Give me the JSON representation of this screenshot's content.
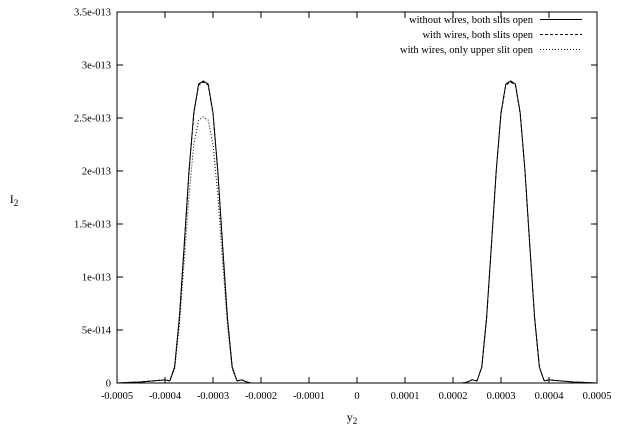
{
  "chart_data": {
    "type": "line",
    "title": "",
    "xlabel": "y",
    "xlabel_sub": "2",
    "ylabel": "I",
    "ylabel_sub": "2",
    "xlim": [
      -0.0005,
      0.0005
    ],
    "ylim": [
      0,
      3.5e-13
    ],
    "x_ticks": [
      -0.0005,
      -0.0004,
      -0.0003,
      -0.0002,
      -0.0001,
      0,
      0.0001,
      0.0002,
      0.0003,
      0.0004,
      0.0005
    ],
    "x_tick_labels": [
      "-0.0005",
      "-0.0004",
      "-0.0003",
      "-0.0002",
      "-0.0001",
      "0",
      "0.0001",
      "0.0002",
      "0.0003",
      "0.0004",
      "0.0005"
    ],
    "y_ticks": [
      0,
      5e-14,
      1e-13,
      1.5e-13,
      2e-13,
      2.5e-13,
      3e-13,
      3.5e-13
    ],
    "y_tick_labels": [
      "0",
      "5e-014",
      "1e-013",
      "1.5e-013",
      "2e-013",
      "2.5e-013",
      "3e-013",
      "3.5e-013"
    ],
    "grid": false,
    "legend_position": "top-right",
    "series": [
      {
        "name": "without wires, both slits open",
        "style": "solid",
        "x": [
          -0.0005,
          -0.00045,
          -0.0004,
          -0.00039,
          -0.00038,
          -0.00037,
          -0.00036,
          -0.00035,
          -0.00034,
          -0.00033,
          -0.00032,
          -0.00031,
          -0.0003,
          -0.00029,
          -0.00028,
          -0.00027,
          -0.00026,
          -0.00025,
          -0.00024,
          -0.00023,
          -0.00022,
          -0.0002,
          -0.0001,
          0,
          0.0001,
          0.0002,
          0.00022,
          0.00023,
          0.00024,
          0.00025,
          0.00026,
          0.00027,
          0.00028,
          0.00029,
          0.0003,
          0.00031,
          0.00032,
          0.00033,
          0.00034,
          0.00035,
          0.00036,
          0.00037,
          0.00038,
          0.00039,
          0.0004,
          0.00045,
          0.0005
        ],
        "y": [
          0,
          1e-15,
          3e-15,
          2e-15,
          1.5e-14,
          6.2e-14,
          1.3e-13,
          2e-13,
          2.55e-13,
          2.82e-13,
          2.85e-13,
          2.82e-13,
          2.55e-13,
          2e-13,
          1.3e-13,
          6.2e-14,
          1.5e-14,
          2e-15,
          3e-15,
          1e-15,
          0,
          0,
          0,
          0,
          0,
          0,
          0,
          1e-15,
          3e-15,
          2e-15,
          1.5e-14,
          6.2e-14,
          1.3e-13,
          2e-13,
          2.55e-13,
          2.82e-13,
          2.85e-13,
          2.82e-13,
          2.55e-13,
          2e-13,
          1.3e-13,
          6.2e-14,
          1.5e-14,
          2e-15,
          3e-15,
          1e-15,
          0
        ]
      },
      {
        "name": "with wires, both slits open",
        "style": "dashed",
        "x": [
          -0.0005,
          -0.00045,
          -0.0004,
          -0.00039,
          -0.00038,
          -0.00037,
          -0.00036,
          -0.00035,
          -0.00034,
          -0.00033,
          -0.00032,
          -0.00031,
          -0.0003,
          -0.00029,
          -0.00028,
          -0.00027,
          -0.00026,
          -0.00025,
          -0.00024,
          -0.00023,
          -0.00022,
          -0.0002,
          -0.0001,
          0,
          0.0001,
          0.0002,
          0.00022,
          0.00023,
          0.00024,
          0.00025,
          0.00026,
          0.00027,
          0.00028,
          0.00029,
          0.0003,
          0.00031,
          0.00032,
          0.00033,
          0.00034,
          0.00035,
          0.00036,
          0.00037,
          0.00038,
          0.00039,
          0.0004,
          0.00045,
          0.0005
        ],
        "y": [
          0,
          1e-15,
          3e-15,
          2e-15,
          1.5e-14,
          6.1e-14,
          1.29e-13,
          1.99e-13,
          2.54e-13,
          2.81e-13,
          2.84e-13,
          2.81e-13,
          2.54e-13,
          1.99e-13,
          1.29e-13,
          6.1e-14,
          1.5e-14,
          2e-15,
          3e-15,
          1e-15,
          0,
          0,
          0,
          0,
          0,
          0,
          0,
          1e-15,
          3e-15,
          2e-15,
          1.5e-14,
          6.1e-14,
          1.29e-13,
          1.99e-13,
          2.54e-13,
          2.81e-13,
          2.84e-13,
          2.81e-13,
          2.54e-13,
          1.99e-13,
          1.29e-13,
          6.1e-14,
          1.5e-14,
          2e-15,
          3e-15,
          1e-15,
          0
        ]
      },
      {
        "name": "with wires, only upper slit open",
        "style": "dotted",
        "x": [
          -0.0005,
          -0.00045,
          -0.0004,
          -0.00039,
          -0.00038,
          -0.00037,
          -0.00036,
          -0.00035,
          -0.00034,
          -0.00033,
          -0.00032,
          -0.00031,
          -0.0003,
          -0.00029,
          -0.00028,
          -0.00027,
          -0.00026,
          -0.00025,
          -0.00024,
          -0.00023,
          -0.00022,
          -0.0002,
          -0.0001,
          0,
          0.0001,
          0.0002,
          0.0003,
          0.0004,
          0.0005
        ],
        "y": [
          0,
          1e-15,
          3e-15,
          2e-15,
          1.3e-14,
          5.5e-14,
          1.15e-13,
          1.77e-13,
          2.25e-13,
          2.48e-13,
          2.51e-13,
          2.48e-13,
          2.25e-13,
          1.77e-13,
          1.15e-13,
          5.5e-14,
          1.3e-14,
          2e-15,
          3e-15,
          1e-15,
          0,
          0,
          0,
          0,
          0,
          0,
          0,
          0,
          0
        ]
      }
    ]
  }
}
